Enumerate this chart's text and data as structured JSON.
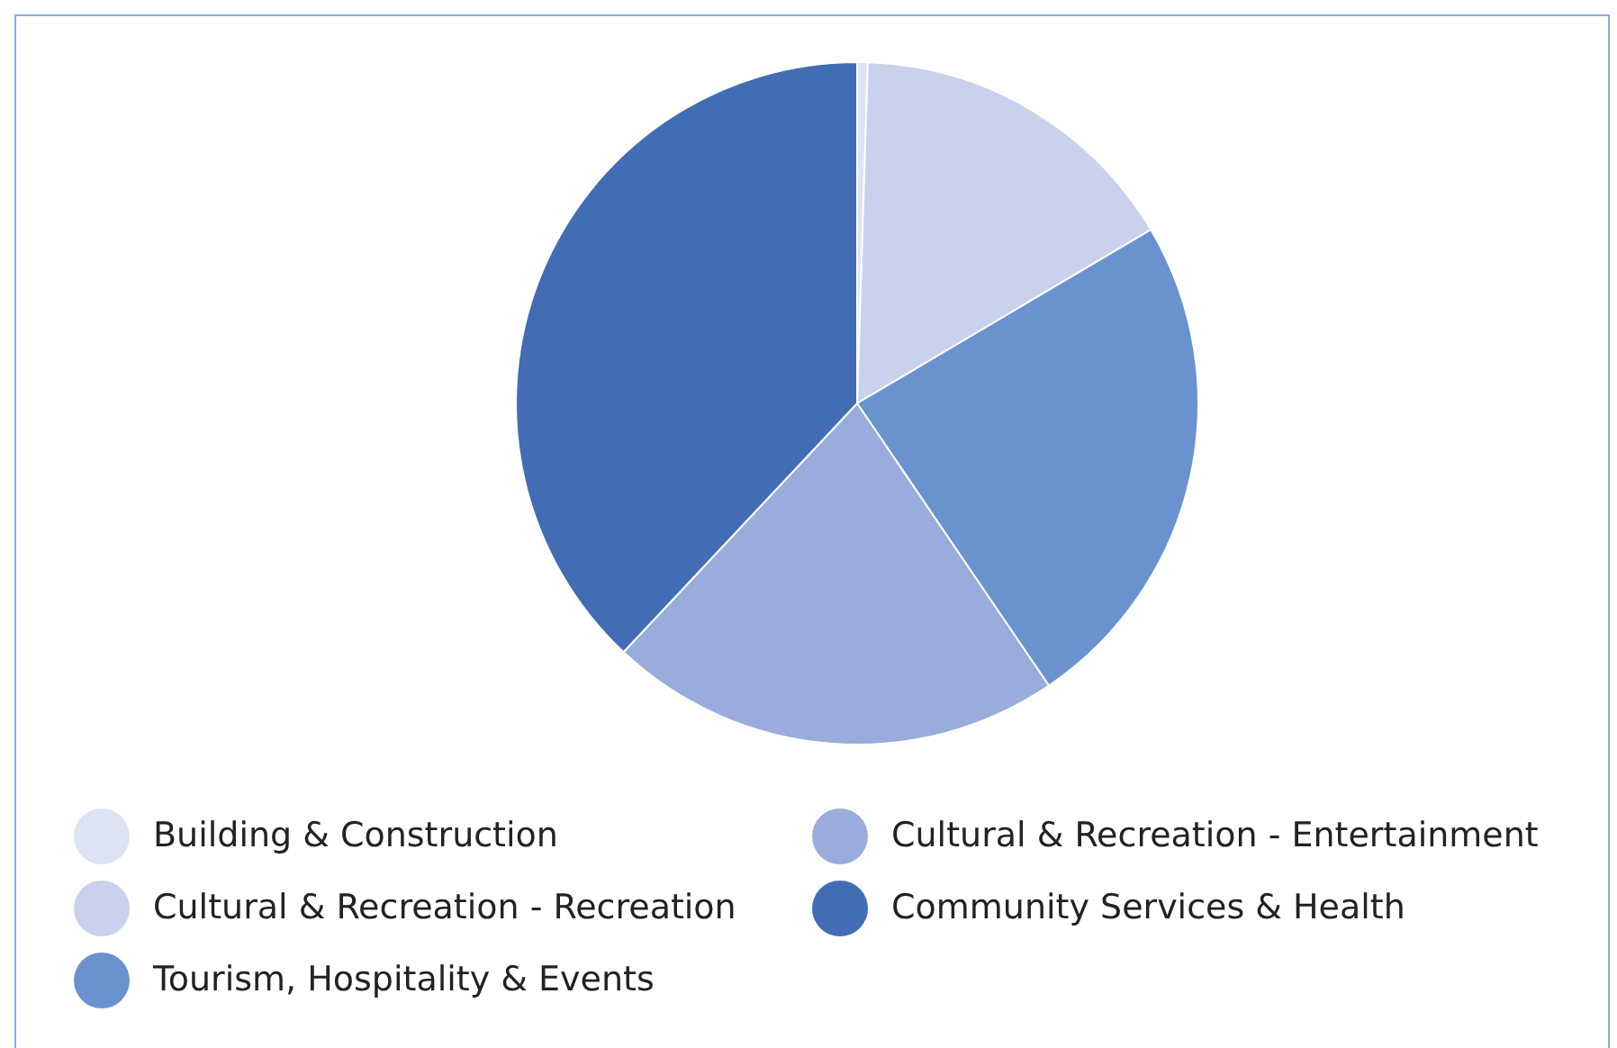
{
  "chart_data": {
    "type": "pie",
    "categories": [
      "Building & Construction",
      "Cultural & Recreation - Recreation",
      "Tourism, Hospitality & Events",
      "Cultural & Recreation - Entertainment",
      "Community Services & Health"
    ],
    "values": [
      0.5,
      16,
      24,
      21.5,
      38
    ],
    "colors": [
      "#dde3f3",
      "#c9d1ec",
      "#6a92cf",
      "#99acdb",
      "#426db5"
    ],
    "legend": "bottom"
  }
}
